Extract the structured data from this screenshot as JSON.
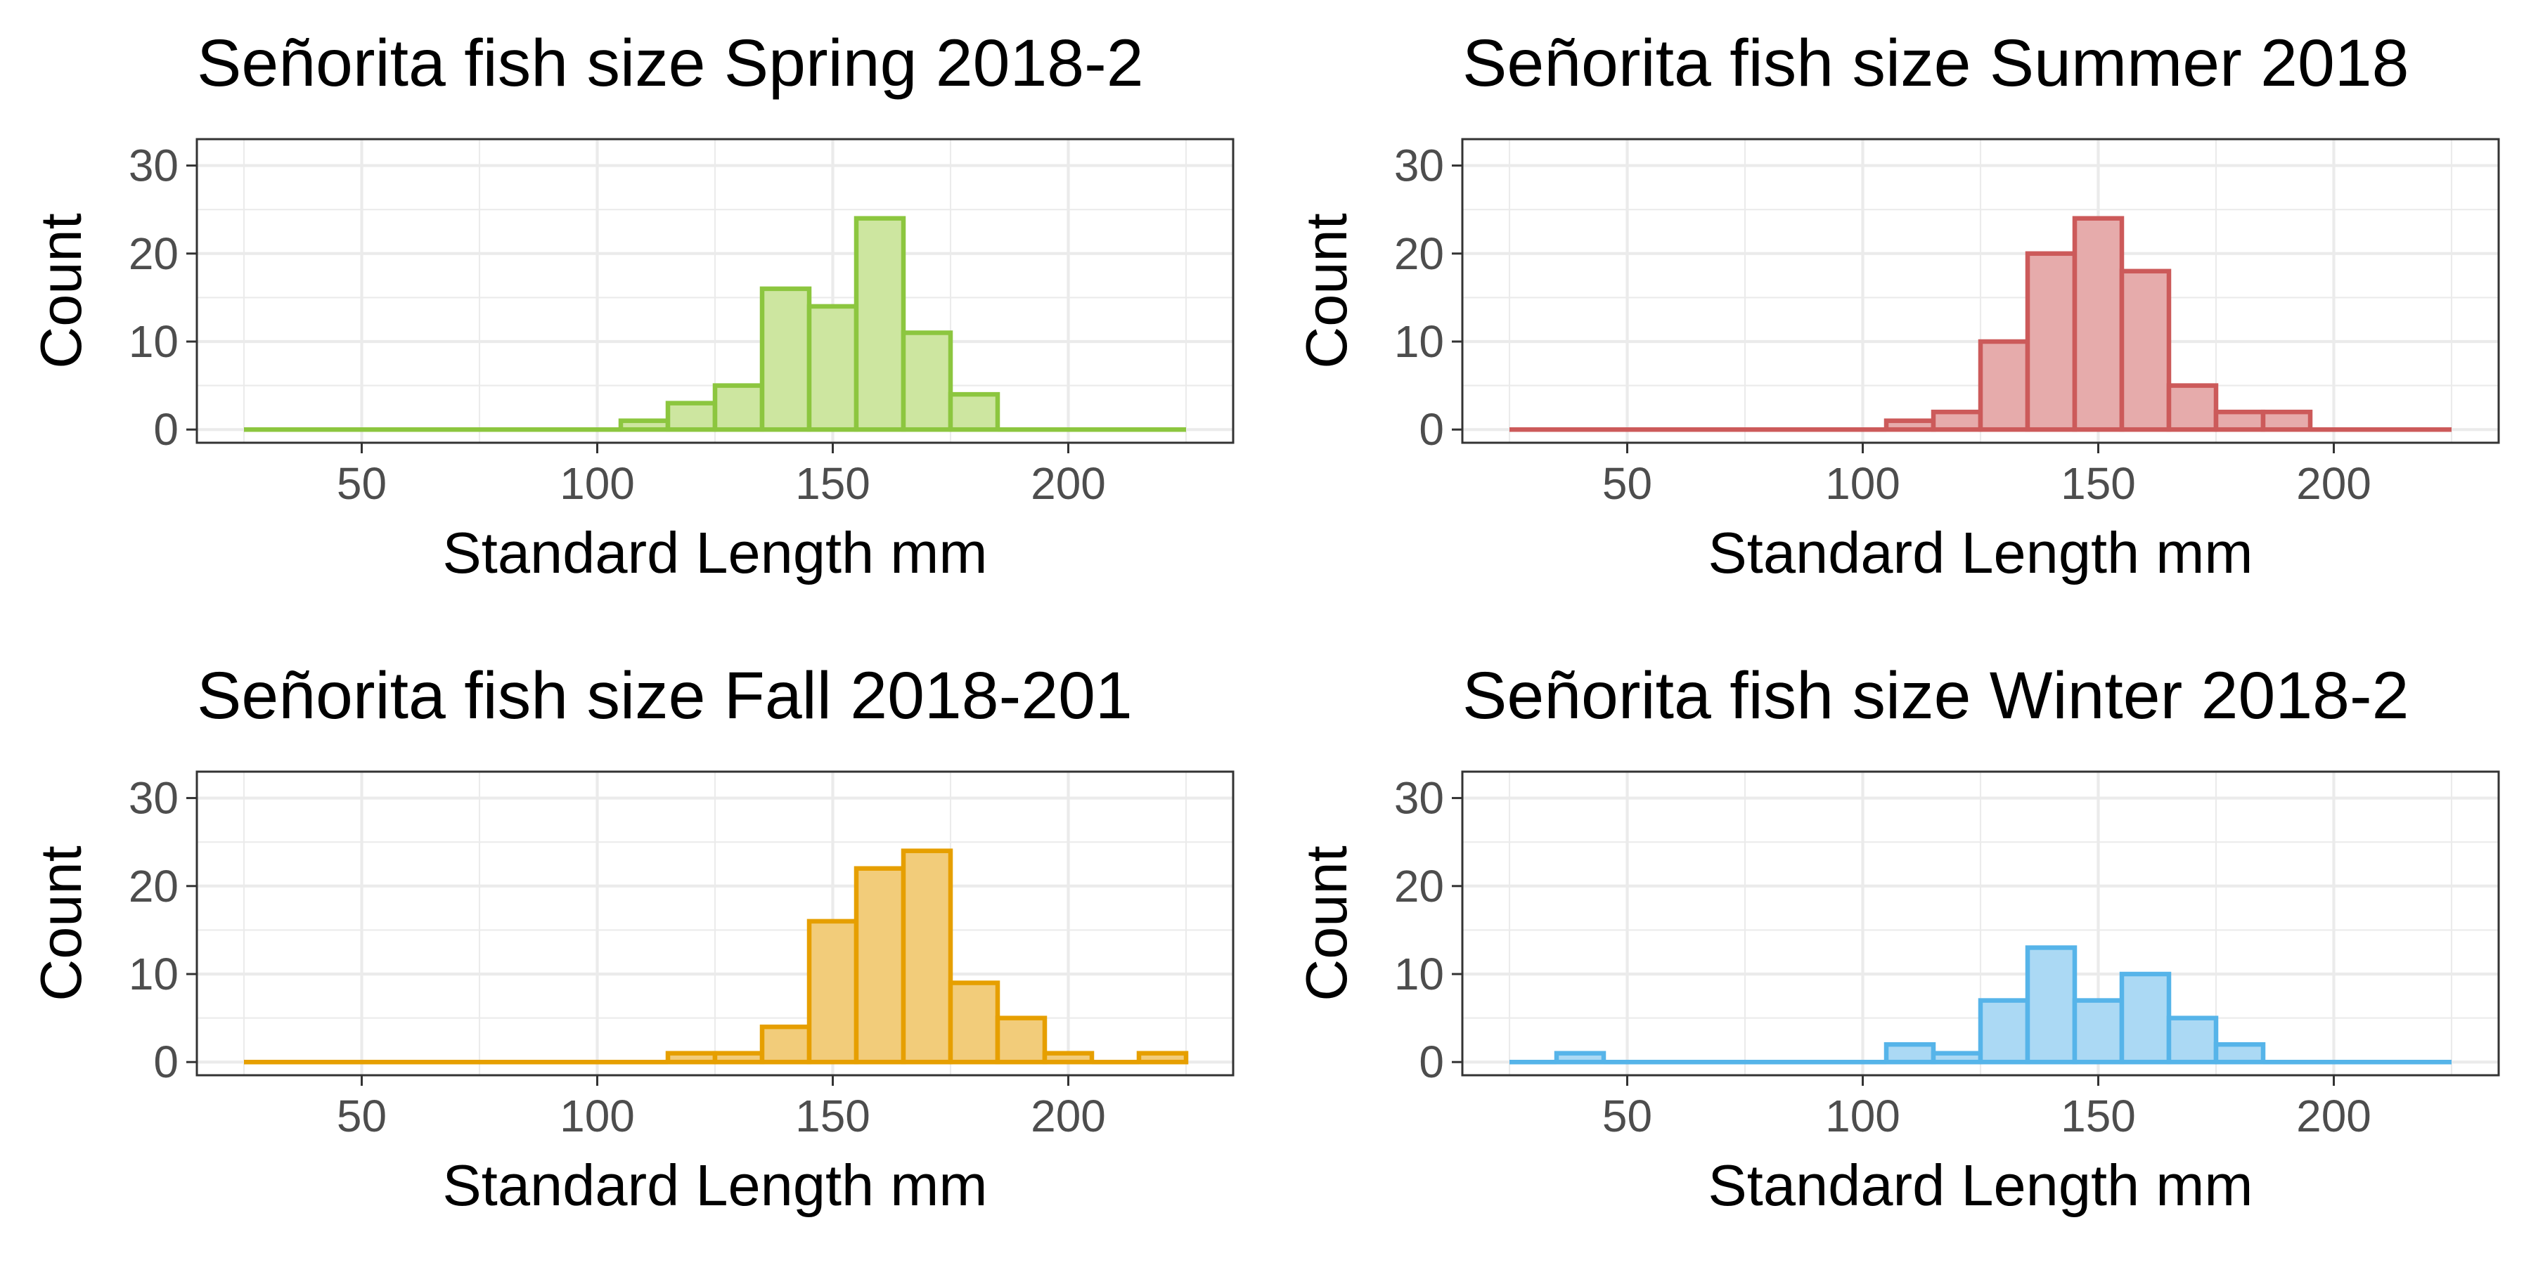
{
  "chart_data": [
    {
      "type": "bar",
      "title": "Señorita fish size Spring 2018-2",
      "xlabel": "Standard Length mm",
      "ylabel": "Count",
      "xlim": [
        15,
        235
      ],
      "ylim": [
        -1.5,
        33
      ],
      "xticks": [
        50,
        100,
        150,
        200
      ],
      "yticks": [
        0,
        10,
        20,
        30
      ],
      "bins": [
        30,
        40,
        50,
        60,
        70,
        80,
        90,
        100,
        110,
        120,
        130,
        140,
        150,
        160,
        170,
        180,
        190,
        200,
        210,
        220
      ],
      "values": [
        0,
        0,
        0,
        0,
        0,
        0,
        0,
        0,
        1,
        3,
        5,
        16,
        14,
        24,
        11,
        4,
        0,
        0,
        0,
        0
      ],
      "color": "#8cc63f",
      "fill": "#cde6a0",
      "grid": true
    },
    {
      "type": "bar",
      "title": "Señorita fish size Summer 2018",
      "xlabel": "Standard Length mm",
      "ylabel": "Count",
      "xlim": [
        15,
        235
      ],
      "ylim": [
        -1.5,
        33
      ],
      "xticks": [
        50,
        100,
        150,
        200
      ],
      "yticks": [
        0,
        10,
        20,
        30
      ],
      "bins": [
        30,
        40,
        50,
        60,
        70,
        80,
        90,
        100,
        110,
        120,
        130,
        140,
        150,
        160,
        170,
        180,
        190,
        200,
        210,
        220
      ],
      "values": [
        0,
        0,
        0,
        0,
        0,
        0,
        0,
        0,
        1,
        2,
        10,
        20,
        24,
        18,
        5,
        2,
        2,
        0,
        0,
        0
      ],
      "color": "#cc5a5a",
      "fill": "#e6abab",
      "grid": true
    },
    {
      "type": "bar",
      "title": "Señorita fish size Fall 2018-201",
      "xlabel": "Standard Length mm",
      "ylabel": "Count",
      "xlim": [
        15,
        235
      ],
      "ylim": [
        -1.5,
        33
      ],
      "xticks": [
        50,
        100,
        150,
        200
      ],
      "yticks": [
        0,
        10,
        20,
        30
      ],
      "bins": [
        30,
        40,
        50,
        60,
        70,
        80,
        90,
        100,
        110,
        120,
        130,
        140,
        150,
        160,
        170,
        180,
        190,
        200,
        210,
        220
      ],
      "values": [
        0,
        0,
        0,
        0,
        0,
        0,
        0,
        0,
        0,
        1,
        1,
        4,
        16,
        22,
        24,
        9,
        5,
        1,
        0,
        1
      ],
      "color": "#e69f00",
      "fill": "#f2cc7a",
      "grid": true
    },
    {
      "type": "bar",
      "title": "Señorita fish size Winter 2018-2",
      "xlabel": "Standard Length mm",
      "ylabel": "Count",
      "xlim": [
        15,
        235
      ],
      "ylim": [
        -1.5,
        33
      ],
      "xticks": [
        50,
        100,
        150,
        200
      ],
      "yticks": [
        0,
        10,
        20,
        30
      ],
      "bins": [
        30,
        40,
        50,
        60,
        70,
        80,
        90,
        100,
        110,
        120,
        130,
        140,
        150,
        160,
        170,
        180,
        190,
        200,
        210,
        220
      ],
      "values": [
        0,
        1,
        0,
        0,
        0,
        0,
        0,
        0,
        2,
        1,
        7,
        13,
        7,
        10,
        5,
        2,
        0,
        0,
        0,
        0
      ],
      "color": "#56b4e9",
      "fill": "#abd9f4",
      "grid": true
    }
  ]
}
